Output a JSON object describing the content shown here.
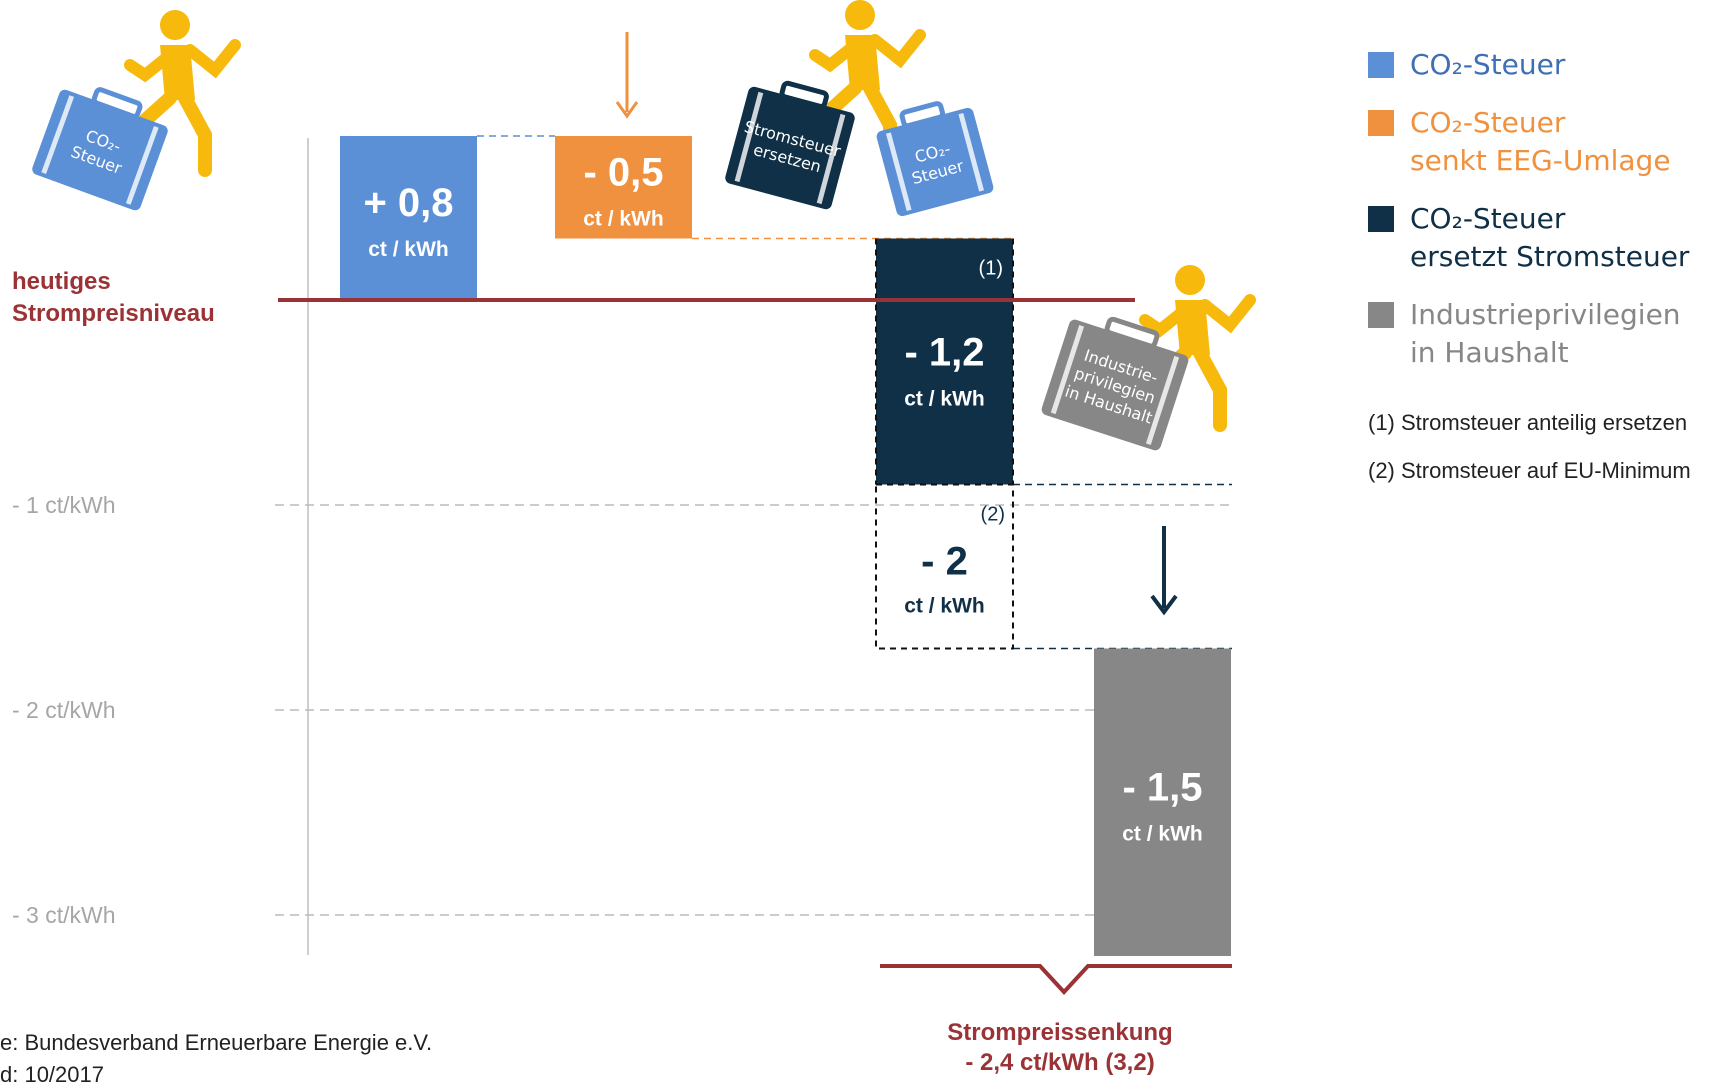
{
  "chart_data": {
    "type": "waterfall",
    "unit": "ct / kWh",
    "reference_label": [
      "heutiges",
      "Strompreisniveau"
    ],
    "y_ticks": [
      {
        "value": -1,
        "label": "- 1 ct/kWh"
      },
      {
        "value": -2,
        "label": "- 2 ct/kWh"
      },
      {
        "value": -3,
        "label": "- 3 ct/kWh"
      }
    ],
    "ylim": [
      -3.2,
      0.8
    ],
    "bars": [
      {
        "value": 0.8,
        "start": 0,
        "end": 0.8,
        "label": "+ 0,8",
        "unit_label": "ct / kWh",
        "color": "#5b8fd6",
        "style": "solid",
        "icon_text": [
          "CO₂-",
          "Steuer"
        ]
      },
      {
        "value": -0.5,
        "start": 0.8,
        "end": 0.3,
        "label": "- 0,5",
        "unit_label": "ct / kWh",
        "color": "#f0913f",
        "style": "solid"
      },
      {
        "value": -1.2,
        "start": 0.3,
        "end": -0.9,
        "label": "- 1,2",
        "unit_label": "ct / kWh",
        "color": "#0f3047",
        "style": "solid",
        "note": "(1)",
        "icon_text": [
          "Stromsteuer",
          "ersetzen"
        ],
        "icon_text2": [
          "CO₂-",
          "Steuer"
        ]
      },
      {
        "value": -2,
        "start": 0.3,
        "end": -1.7,
        "label": "- 2",
        "unit_label": "ct / kWh",
        "color": "#000000",
        "style": "dashed",
        "note": "(2)"
      },
      {
        "value": -1.5,
        "start": -1.7,
        "end": -3.2,
        "label": "- 1,5",
        "unit_label": "ct / kWh",
        "color": "#878787",
        "style": "solid",
        "icon_text": [
          "Industrie-",
          "privilegien",
          "in Haushalt"
        ]
      }
    ],
    "total": {
      "title": "Strompreissenkung",
      "value_label": "- 2,4 ct/kWh (3,2)"
    }
  },
  "legend": [
    {
      "lines": [
        "CO₂-Steuer"
      ],
      "color": "#5b8fd6",
      "text_color": "#3f6fb5"
    },
    {
      "lines": [
        "CO₂-Steuer",
        "senkt EEG-Umlage"
      ],
      "color": "#f0913f",
      "text_color": "#f0913f"
    },
    {
      "lines": [
        "CO₂-Steuer",
        "ersetzt Stromsteuer"
      ],
      "color": "#0f3047",
      "text_color": "#0f3047"
    },
    {
      "lines": [
        "Industrieprivilegien",
        "in Haushalt"
      ],
      "color": "#878787",
      "text_color": "#878787"
    }
  ],
  "notes": [
    "(1) Stromsteuer anteilig ersetzen",
    "(2) Stromsteuer auf EU-Minimum"
  ],
  "footer": [
    "e: Bundesverband Erneuerbare Energie e.V.",
    "d: 10/2017"
  ],
  "colors": {
    "reference_line": "#9b3235",
    "grid": "#bbbbbb",
    "tick_text": "#a6a6a6",
    "figure": "#f7b90b",
    "bracket": "#9b3235"
  }
}
